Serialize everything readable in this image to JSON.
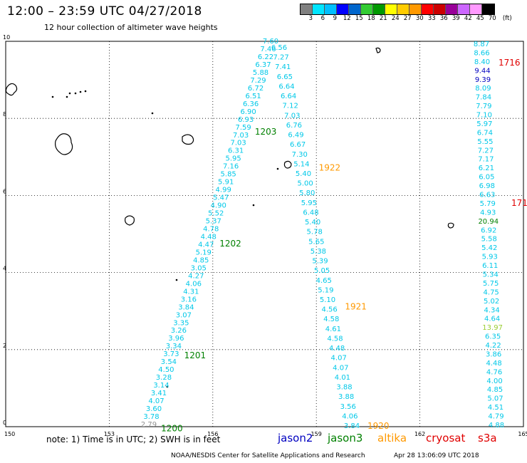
{
  "header": {
    "title": "12:00 – 23:59 UTC 04/27/2018",
    "subtitle": "12 hour collection of altimeter wave heights"
  },
  "colorbar": {
    "colors": [
      "#808080",
      "#00e5ff",
      "#00bfff",
      "#0000ff",
      "#0066cc",
      "#33cc33",
      "#009900",
      "#ffff00",
      "#ffcc00",
      "#ff9900",
      "#ff0000",
      "#cc0000",
      "#990099",
      "#cc66ff",
      "#ff99ff",
      "#000000"
    ],
    "labels": [
      "3",
      "6",
      "9",
      "12",
      "15",
      "18",
      "21",
      "24",
      "27",
      "30",
      "33",
      "36",
      "39",
      "42",
      "45",
      "70",
      "(ft)"
    ]
  },
  "map": {
    "x_ticks": [
      "150",
      "153",
      "156",
      "159",
      "162",
      "165"
    ],
    "y_ticks": [
      "0",
      "2",
      "4",
      "6",
      "8",
      "10"
    ],
    "colors": {
      "grid": "#000000",
      "coast": "#000000",
      "cyan": "#00c8e8",
      "gray": "#909090",
      "green": "#008000",
      "blue": "#0000c0",
      "orange": "#ff9900",
      "red": "#e00000",
      "yellowgreen": "#9acd32"
    },
    "track_left": {
      "values": [
        "7.60",
        "7.46",
        "6.22",
        "6.37",
        "5.88",
        "7.29",
        "6.72",
        "6.51",
        "6.36",
        "6.90",
        "6.93",
        "7.59",
        "7.03",
        "7.03",
        "6.31",
        "5.95",
        "7.16",
        "5.85",
        "5.91",
        "4.99",
        "5.47",
        "4.90",
        "5.52",
        "5.37",
        "4.78",
        "4.48",
        "4.47",
        "5.19",
        "4.85",
        "3.05",
        "4.27",
        "4.06",
        "4.31",
        "3.16",
        "3.84",
        "3.07",
        "3.35",
        "3.26",
        "3.96",
        "3.34",
        "3.73",
        "3.54",
        "4.50",
        "3.28",
        "3.14",
        "3.41",
        "4.07",
        "3.60",
        "3.78",
        "2.79"
      ],
      "times": [
        {
          "label": "1203",
          "lat": 7.65
        },
        {
          "label": "1202",
          "lat": 4.75
        },
        {
          "label": "1201",
          "lat": 1.85
        },
        {
          "label": "1200",
          "lat": -0.05
        }
      ]
    },
    "track_right": {
      "values": [
        "6.56",
        "7.27",
        "7.41",
        "6.65",
        "6.64",
        "6.64",
        "7.12",
        "7.03",
        "6.76",
        "6.49",
        "6.67",
        "7.30",
        "5.14",
        "5.40",
        "5.00",
        "5.80",
        "5.95",
        "6.48",
        "5.40",
        "5.78",
        "5.65",
        "5.38",
        "5.39",
        "5.05",
        "4.65",
        "5.19",
        "5.10",
        "4.56",
        "4.58",
        "4.61",
        "4.58",
        "4.48",
        "4.07",
        "4.07",
        "4.01",
        "3.88",
        "3.88",
        "3.56",
        "4.06",
        "3.84"
      ],
      "times": [
        {
          "label": "1922",
          "lat": 6.7
        },
        {
          "label": "1921",
          "lat": 3.1
        },
        {
          "label": "1920",
          "lat": 0.0
        }
      ]
    },
    "track_east": {
      "values": [
        "8.87",
        "8.66",
        "8.40",
        "9.44",
        "9.39",
        "8.09",
        "7.84",
        "7.79",
        "7.10",
        "5.97",
        "6.74",
        "5.55",
        "7.27",
        "7.17",
        "6.21",
        "6.05",
        "6.98",
        "6.63",
        "5.79",
        "4.93",
        "20.94",
        "6.92",
        "5.58",
        "5.42",
        "5.93",
        "6.11",
        "5.34",
        "5.75",
        "4.75",
        "5.02",
        "4.34",
        "4.64",
        "13.97",
        "6.35",
        "4.22",
        "3.86",
        "4.48",
        "4.76",
        "4.00",
        "4.85",
        "5.07",
        "4.51",
        "4.79",
        "4.88"
      ],
      "colors": [
        "cyan",
        "cyan",
        "cyan",
        "blue",
        "blue",
        "cyan",
        "cyan",
        "cyan",
        "cyan",
        "cyan",
        "cyan",
        "cyan",
        "cyan",
        "cyan",
        "cyan",
        "cyan",
        "cyan",
        "cyan",
        "cyan",
        "cyan",
        "green",
        "cyan",
        "cyan",
        "cyan",
        "cyan",
        "cyan",
        "cyan",
        "cyan",
        "cyan",
        "cyan",
        "cyan",
        "cyan",
        "yellowgreen",
        "cyan",
        "cyan",
        "cyan",
        "cyan",
        "cyan",
        "cyan",
        "cyan",
        "cyan",
        "cyan",
        "cyan",
        "cyan"
      ],
      "times": [
        {
          "label": "1716",
          "lat": 9.45
        },
        {
          "label": "171",
          "lat": 5.8
        }
      ]
    }
  },
  "footer": {
    "note": "note:  1) Time is in UTC;  2) SWH is in feet",
    "satellites": [
      {
        "name": "jason2",
        "color": "#0000c0"
      },
      {
        "name": "jason3",
        "color": "#008000"
      },
      {
        "name": "altika",
        "color": "#ff9900"
      },
      {
        "name": "cryosat",
        "color": "#e00000"
      },
      {
        "name": "s3a",
        "color": "#e00000"
      }
    ],
    "credit": "NOAA/NESDIS Center for Satellite Applications and Research",
    "timestamp": "Apr 28 13:06:09 UTC 2018"
  }
}
